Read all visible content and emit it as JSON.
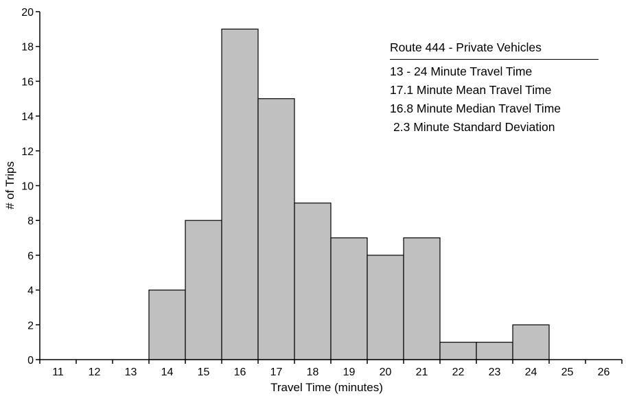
{
  "chart_data": {
    "type": "bar",
    "title": "Route 444 - Private Vehicles",
    "xlabel": "Travel Time (minutes)",
    "ylabel": "# of Trips",
    "categories": [
      "11",
      "12",
      "13",
      "14",
      "15",
      "16",
      "17",
      "18",
      "19",
      "20",
      "21",
      "22",
      "23",
      "24",
      "25",
      "26"
    ],
    "bars": [
      {
        "x": 14,
        "value": 4
      },
      {
        "x": 15,
        "value": 8
      },
      {
        "x": 16,
        "value": 19
      },
      {
        "x": 17,
        "value": 15
      },
      {
        "x": 18,
        "value": 9
      },
      {
        "x": 19,
        "value": 7
      },
      {
        "x": 20,
        "value": 6
      },
      {
        "x": 21,
        "value": 7
      },
      {
        "x": 22,
        "value": 1
      },
      {
        "x": 23,
        "value": 1
      },
      {
        "x": 24,
        "value": 2
      }
    ],
    "xlim": [
      10.5,
      26.5
    ],
    "ylim": [
      0,
      20
    ],
    "yticks": [
      0,
      2,
      4,
      6,
      8,
      10,
      12,
      14,
      16,
      18,
      20
    ],
    "grid": false,
    "colors": {
      "bar_fill": "#c0c0c0",
      "bar_edge": "#000000"
    },
    "annotations": [
      "13 - 24 Minute Travel Time",
      "17.1 Minute Mean Travel Time",
      "16.8 Minute Median Travel Time",
      "2.3 Minute Standard Deviation"
    ]
  }
}
